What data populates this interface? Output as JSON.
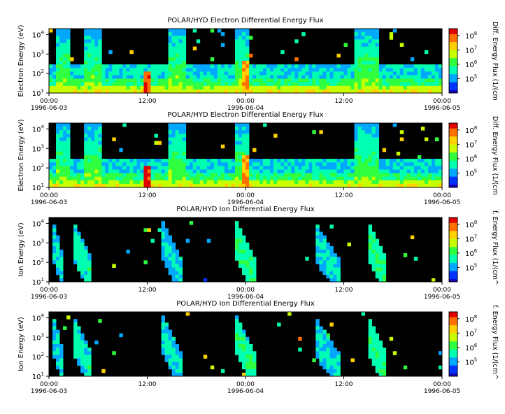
{
  "chart_data": [
    {
      "type": "heatmap",
      "title": "POLAR/HYD  Electron Differential Energy Flux",
      "ylabel": "Electron Energy (eV)",
      "colorbar_label": "Diff. Energy Flux (1/(cm",
      "x_ticks": [
        {
          "time": "00:00",
          "date": "1996-06-03"
        },
        {
          "time": "12:00",
          "date": ""
        },
        {
          "time": "00:00",
          "date": "1996-06-04"
        },
        {
          "time": "12:00",
          "date": ""
        },
        {
          "time": "00:00",
          "date": "1996-06-05"
        }
      ],
      "y_ticks": [
        {
          "base": "10",
          "exp": "4"
        },
        {
          "base": "10",
          "exp": "3"
        },
        {
          "base": "10",
          "exp": "2"
        },
        {
          "base": "10",
          "exp": "1"
        }
      ],
      "ylim": [
        10,
        20000
      ],
      "yscale": "log",
      "colorbar_ticks": [
        {
          "base": "10",
          "exp": "8"
        },
        {
          "base": "10",
          "exp": "7"
        },
        {
          "base": "10",
          "exp": "6"
        },
        {
          "base": "10",
          "exp": "5"
        }
      ],
      "colorbar_range": [
        10000,
        300000000
      ],
      "species": "electron"
    },
    {
      "type": "heatmap",
      "title": "POLAR/HYD  Electron Differential Energy Flux",
      "ylabel": "Electron Energy (eV)",
      "colorbar_label": "Diff. Energy Flux (1/(cm",
      "x_ticks": [
        {
          "time": "00:00",
          "date": "1996-06-03"
        },
        {
          "time": "12:00",
          "date": ""
        },
        {
          "time": "00:00",
          "date": "1996-06-04"
        },
        {
          "time": "12:00",
          "date": ""
        },
        {
          "time": "00:00",
          "date": "1996-06-05"
        }
      ],
      "y_ticks": [
        {
          "base": "10",
          "exp": "4"
        },
        {
          "base": "10",
          "exp": "3"
        },
        {
          "base": "10",
          "exp": "2"
        },
        {
          "base": "10",
          "exp": "1"
        }
      ],
      "ylim": [
        10,
        20000
      ],
      "yscale": "log",
      "colorbar_ticks": [
        {
          "base": "10",
          "exp": "8"
        },
        {
          "base": "10",
          "exp": "7"
        },
        {
          "base": "10",
          "exp": "6"
        },
        {
          "base": "10",
          "exp": "5"
        }
      ],
      "colorbar_range": [
        10000,
        300000000
      ],
      "species": "electron"
    },
    {
      "type": "heatmap",
      "title": "POLAR/HYD  Ion Differential Energy Flux",
      "ylabel": "Ion Energy (eV)",
      "colorbar_label": "f. Energy Flux (1/(cm^",
      "x_ticks": [
        {
          "time": "00:00",
          "date": "1996-06-03"
        },
        {
          "time": "12:00",
          "date": ""
        },
        {
          "time": "00:00",
          "date": "1996-06-04"
        },
        {
          "time": "12:00",
          "date": ""
        },
        {
          "time": "00:00",
          "date": "1996-06-05"
        }
      ],
      "y_ticks": [
        {
          "base": "10",
          "exp": "4"
        },
        {
          "base": "10",
          "exp": "3"
        },
        {
          "base": "10",
          "exp": "2"
        },
        {
          "base": "10",
          "exp": "1"
        }
      ],
      "ylim": [
        10,
        20000
      ],
      "yscale": "log",
      "colorbar_ticks": [
        {
          "base": "10",
          "exp": "8"
        },
        {
          "base": "10",
          "exp": "7"
        },
        {
          "base": "10",
          "exp": "6"
        },
        {
          "base": "10",
          "exp": "5"
        }
      ],
      "colorbar_range": [
        10000,
        300000000
      ],
      "species": "ion"
    },
    {
      "type": "heatmap",
      "title": "POLAR/HYD  Ion Differential Energy Flux",
      "ylabel": "Ion Energy (eV)",
      "colorbar_label": "f. Energy Flux (1/(cm^",
      "x_ticks": [
        {
          "time": "00:00",
          "date": "1996-06-03"
        },
        {
          "time": "12:00",
          "date": ""
        },
        {
          "time": "00:00",
          "date": "1996-06-04"
        },
        {
          "time": "12:00",
          "date": ""
        },
        {
          "time": "00:00",
          "date": "1996-06-05"
        }
      ],
      "y_ticks": [
        {
          "base": "10",
          "exp": "4"
        },
        {
          "base": "10",
          "exp": "3"
        },
        {
          "base": "10",
          "exp": "2"
        },
        {
          "base": "10",
          "exp": "1"
        }
      ],
      "ylim": [
        10,
        20000
      ],
      "yscale": "log",
      "colorbar_ticks": [
        {
          "base": "10",
          "exp": "8"
        },
        {
          "base": "10",
          "exp": "7"
        },
        {
          "base": "10",
          "exp": "6"
        },
        {
          "base": "10",
          "exp": "5"
        }
      ],
      "colorbar_range": [
        10000,
        300000000
      ],
      "species": "ion"
    }
  ],
  "colormap": [
    "#1400b4",
    "#0033ff",
    "#00a8ff",
    "#00ffb0",
    "#30ff40",
    "#c8ff00",
    "#ffd000",
    "#ff7000",
    "#e00000"
  ],
  "background_color": "#000000"
}
